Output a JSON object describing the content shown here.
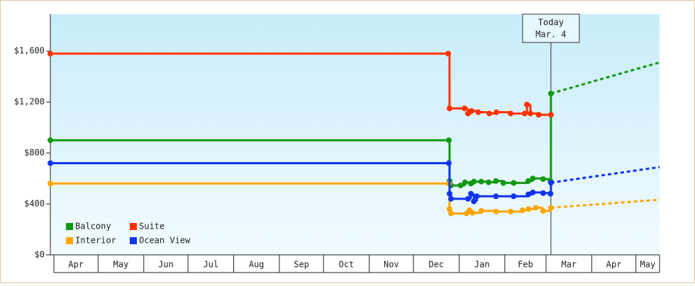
{
  "chart_data": {
    "type": "line",
    "line_style": "step",
    "xlim": [
      -2.4,
      411
    ],
    "ylim": [
      0,
      1890
    ],
    "yticks": [
      {
        "value": 0,
        "label": "$0"
      },
      {
        "value": 400,
        "label": "$400"
      },
      {
        "value": 800,
        "label": "$800"
      },
      {
        "value": 1200,
        "label": "$1,200"
      },
      {
        "value": 1600,
        "label": "$1,600"
      }
    ],
    "xticks": [
      {
        "value": 0,
        "label": "Apr"
      },
      {
        "value": 30,
        "label": "May"
      },
      {
        "value": 61,
        "label": "Jun"
      },
      {
        "value": 91,
        "label": "Jul"
      },
      {
        "value": 122,
        "label": "Aug"
      },
      {
        "value": 153,
        "label": "Sep"
      },
      {
        "value": 183,
        "label": "Oct"
      },
      {
        "value": 214,
        "label": "Nov"
      },
      {
        "value": 244,
        "label": "Dec"
      },
      {
        "value": 275,
        "label": "Jan"
      },
      {
        "value": 306,
        "label": "Feb"
      },
      {
        "value": 334,
        "label": "Mar"
      },
      {
        "value": 365,
        "label": "Apr"
      },
      {
        "value": 395,
        "label": "May"
      }
    ],
    "annotation": {
      "x": 337.3,
      "lines": [
        "Today",
        "Mar. 4"
      ]
    },
    "legend_position": "lower left",
    "series": [
      {
        "name": "Balcony",
        "color": "#119911",
        "x": [
          -2.4,
          268,
          268.5,
          269.5,
          276,
          279,
          283,
          285,
          290,
          295,
          300,
          305,
          312,
          322,
          325,
          332,
          337,
          337.3
        ],
        "values": [
          900,
          900,
          580,
          545,
          545,
          570,
          560,
          575,
          575,
          570,
          580,
          565,
          565,
          580,
          600,
          595,
          580,
          1267
        ],
        "projection": {
          "x": [
            337.3,
            411
          ],
          "values": [
            1267,
            1511
          ]
        }
      },
      {
        "name": "Suite",
        "color": "#ff3300",
        "x": [
          -2.4,
          267.6,
          268.5,
          278.6,
          281,
          283.4,
          288,
          295.5,
          300.3,
          310,
          319.5,
          321,
          323.4,
          329,
          337.3
        ],
        "values": [
          1580,
          1580,
          1150,
          1150,
          1110,
          1130,
          1120,
          1110,
          1120,
          1110,
          1110,
          1180,
          1110,
          1100,
          1100
        ]
      },
      {
        "name": "Interior",
        "color": "#ffa500",
        "x": [
          -2.4,
          268,
          268.5,
          269.5,
          280,
          282,
          284,
          290,
          300,
          310,
          318,
          322,
          327,
          332,
          337.3
        ],
        "values": [
          560,
          560,
          360,
          325,
          325,
          350,
          330,
          345,
          340,
          340,
          350,
          360,
          370,
          345,
          370
        ],
        "projection": {
          "x": [
            337.3,
            411
          ],
          "values": [
            370,
            433
          ]
        }
      },
      {
        "name": "Ocean View",
        "color": "#1133ee",
        "x": [
          -2.4,
          268,
          268.5,
          269.5,
          281,
          283,
          285,
          287,
          300,
          312,
          322,
          325,
          332,
          337,
          337.3
        ],
        "values": [
          720,
          720,
          480,
          440,
          440,
          480,
          420,
          460,
          460,
          460,
          475,
          490,
          485,
          480,
          567
        ],
        "projection": {
          "x": [
            337.3,
            411
          ],
          "values": [
            567,
            689
          ]
        }
      }
    ]
  }
}
